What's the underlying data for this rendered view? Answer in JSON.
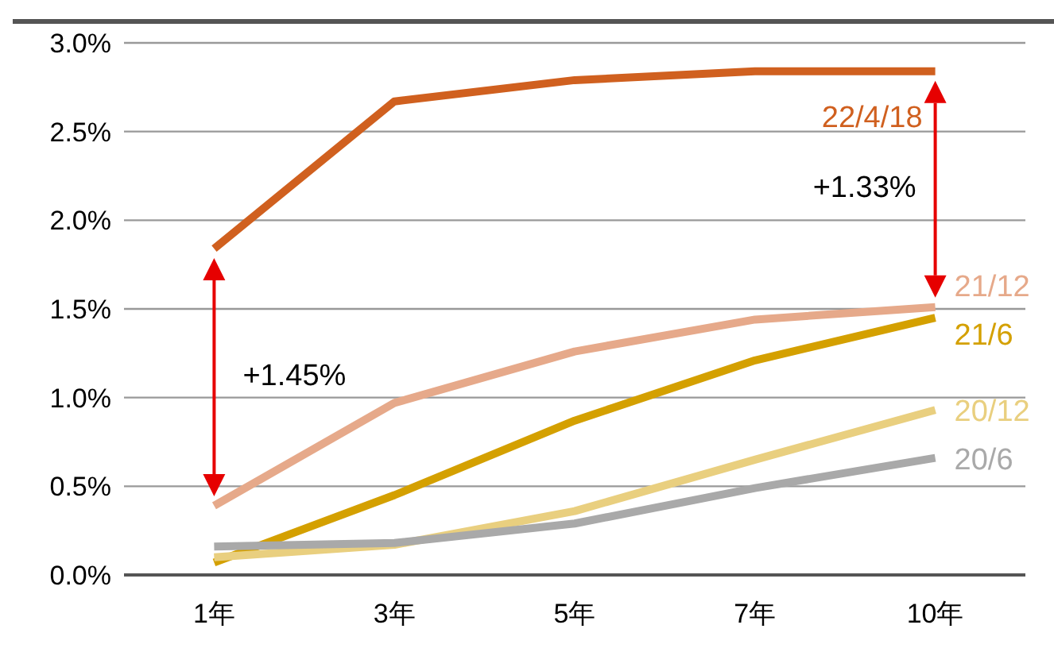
{
  "chart_data": {
    "type": "line",
    "categories": [
      "1年",
      "3年",
      "5年",
      "7年",
      "10年"
    ],
    "series": [
      {
        "name": "22/4/18",
        "color": "#d0601f",
        "values": [
          1.84,
          2.67,
          2.79,
          2.84,
          2.84
        ]
      },
      {
        "name": "21/12",
        "color": "#e6a98a",
        "values": [
          0.39,
          0.97,
          1.26,
          1.44,
          1.51
        ]
      },
      {
        "name": "21/6",
        "color": "#d4a000",
        "values": [
          0.07,
          0.45,
          0.87,
          1.21,
          1.45
        ]
      },
      {
        "name": "20/12",
        "color": "#e9cf7f",
        "values": [
          0.1,
          0.17,
          0.36,
          0.65,
          0.93
        ]
      },
      {
        "name": "20/6",
        "color": "#a9a9a9",
        "values": [
          0.16,
          0.18,
          0.29,
          0.49,
          0.66
        ]
      }
    ],
    "ylim": [
      0,
      3
    ],
    "yticks": [
      {
        "value": 0,
        "label": "0.0%"
      },
      {
        "value": 0.5,
        "label": "0.5%"
      },
      {
        "value": 1,
        "label": "1.0%"
      },
      {
        "value": 1.5,
        "label": "1.5%"
      },
      {
        "value": 2,
        "label": "2.0%"
      },
      {
        "value": 2.5,
        "label": "2.5%"
      },
      {
        "value": 3,
        "label": "3.0%"
      }
    ],
    "grid": "y",
    "marker": "none",
    "line_style": "solid",
    "annotations": [
      "+1.45%",
      "+1.33%"
    ]
  }
}
